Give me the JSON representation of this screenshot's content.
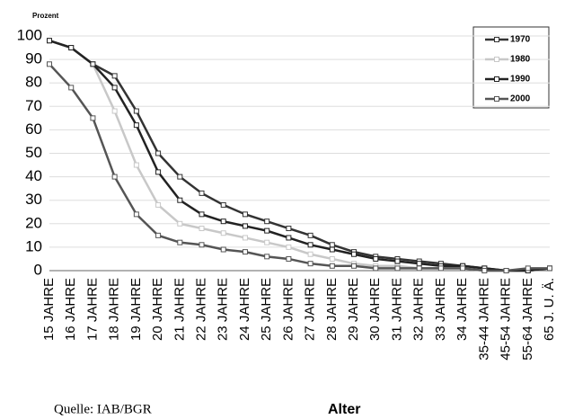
{
  "chart_data": {
    "type": "line",
    "y_label": "Prozent",
    "x_label": "Alter",
    "source": "Quelle: IAB/BGR",
    "categories": [
      "15 JAHRE",
      "16 JAHRE",
      "17 JAHRE",
      "18 JAHRE",
      "19 JAHRE",
      "20 JAHRE",
      "21 JAHRE",
      "22 JAHRE",
      "23 JAHRE",
      "24 JAHRE",
      "25 JAHRE",
      "26 JAHRE",
      "27 JAHRE",
      "28 JAHRE",
      "29 JAHRE",
      "30 JAHRE",
      "31 JAHRE",
      "32 JAHRE",
      "33 JAHRE",
      "34 JAHRE",
      "35-44 JAHRE",
      "45-54 JAHRE",
      "55-64 JAHRE",
      "65 J. U. Ä."
    ],
    "series": [
      {
        "name": "1970",
        "color": "#333333",
        "values": [
          98,
          95,
          88,
          83,
          68,
          50,
          40,
          33,
          28,
          24,
          21,
          18,
          15,
          11,
          8,
          6,
          5,
          4,
          3,
          2,
          1,
          0,
          0,
          1
        ]
      },
      {
        "name": "1980",
        "color": "#c8c8c8",
        "values": [
          98,
          95,
          88,
          68,
          45,
          28,
          20,
          18,
          16,
          14,
          12,
          10,
          7,
          5,
          3,
          2,
          2,
          1,
          1,
          1,
          0,
          0,
          0,
          1
        ]
      },
      {
        "name": "1990",
        "color": "#222222",
        "values": [
          98,
          95,
          88,
          78,
          62,
          42,
          30,
          24,
          21,
          19,
          17,
          14,
          11,
          9,
          7,
          5,
          4,
          3,
          2,
          2,
          1,
          0,
          0,
          1
        ]
      },
      {
        "name": "2000",
        "color": "#555555",
        "values": [
          88,
          78,
          65,
          40,
          24,
          15,
          12,
          11,
          9,
          8,
          6,
          5,
          3,
          2,
          2,
          1,
          1,
          1,
          1,
          1,
          0,
          0,
          1,
          1
        ]
      }
    ],
    "ylim": [
      0,
      100
    ],
    "yticks": [
      0,
      10,
      20,
      30,
      40,
      50,
      60,
      70,
      80,
      90,
      100
    ],
    "grid": true,
    "legend": "upper right"
  }
}
